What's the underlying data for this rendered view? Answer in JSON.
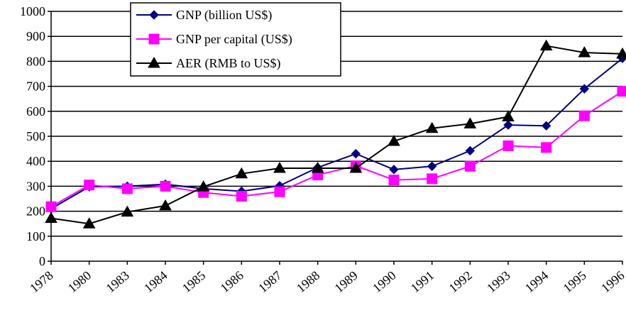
{
  "chart_data": {
    "type": "line",
    "x": [
      "1978",
      "1980",
      "1983",
      "1984",
      "1985",
      "1986",
      "1987",
      "1988",
      "1989",
      "1990",
      "1991",
      "1992",
      "1993",
      "1994",
      "1995",
      "1996"
    ],
    "ylim": [
      0,
      1000
    ],
    "yticks": [
      0,
      100,
      200,
      300,
      400,
      500,
      600,
      700,
      800,
      900,
      1000
    ],
    "grid": true,
    "legend_position": "top-left",
    "series": [
      {
        "name": "GNP (billion US$)",
        "color": "#000080",
        "marker": "diamond",
        "values": [
          210,
          298,
          300,
          308,
          290,
          280,
          302,
          375,
          430,
          367,
          380,
          442,
          545,
          542,
          690,
          812
        ]
      },
      {
        "name": "GNP per capital (US$)",
        "color": "#FF00FF",
        "marker": "square",
        "values": [
          218,
          305,
          290,
          300,
          275,
          260,
          278,
          345,
          382,
          325,
          330,
          380,
          462,
          455,
          582,
          680
        ]
      },
      {
        "name": "AER (RMB to US$)",
        "color": "#000000",
        "marker": "triangle",
        "values": [
          172,
          150,
          197,
          222,
          298,
          350,
          372,
          372,
          372,
          480,
          532,
          550,
          578,
          862,
          835,
          830
        ]
      }
    ]
  }
}
